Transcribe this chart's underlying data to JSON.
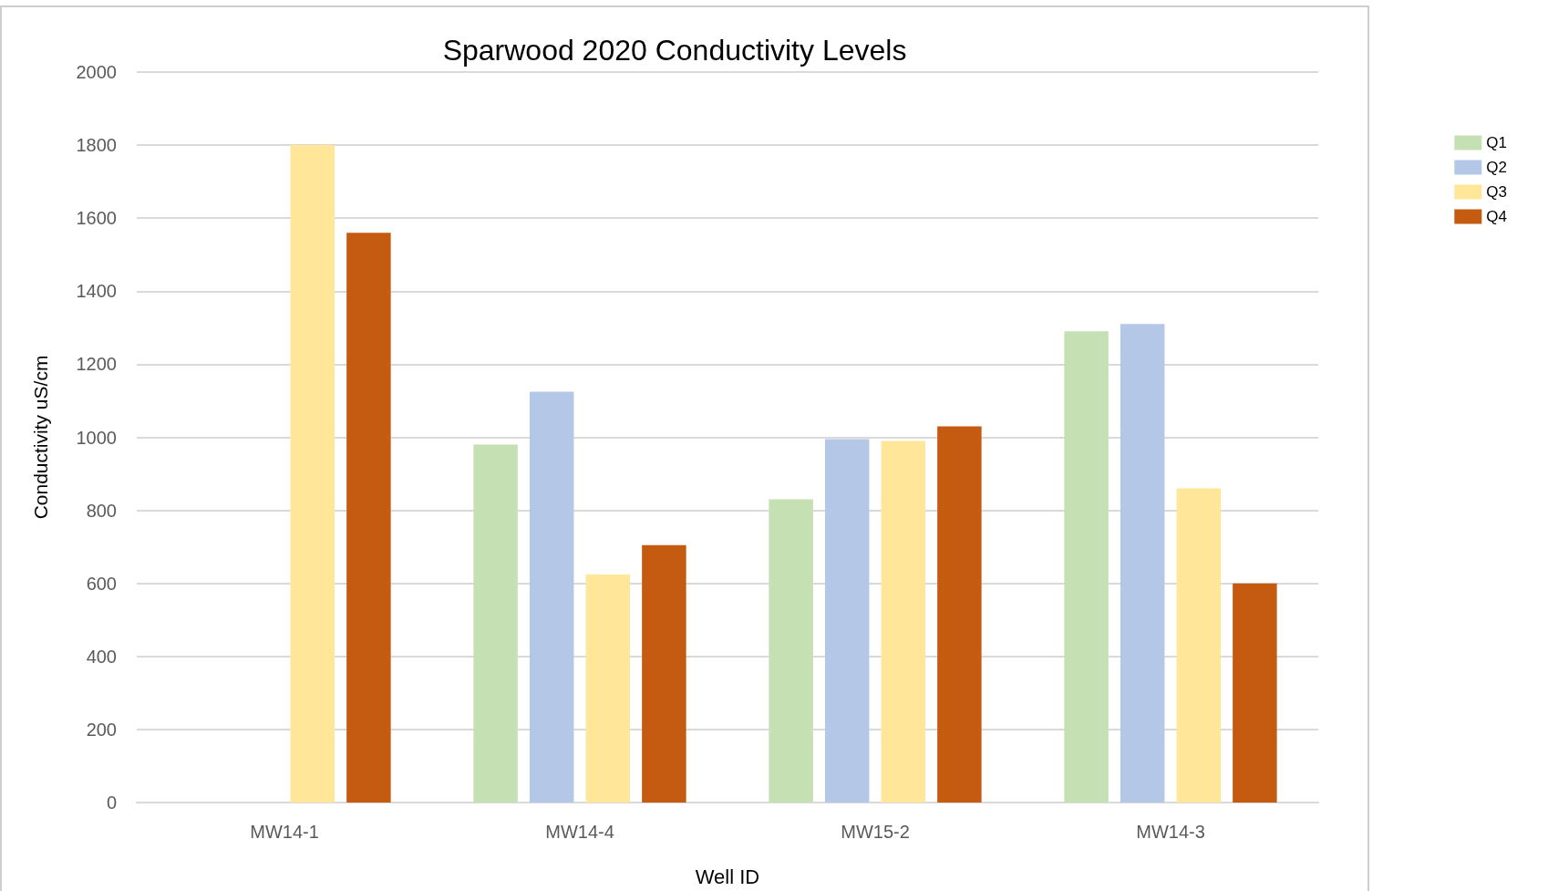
{
  "chart_data": {
    "type": "bar",
    "title": "Sparwood 2020 Conductivity Levels",
    "xlabel": "Well ID",
    "ylabel": "Conductivity uS/cm",
    "categories": [
      "MW14-1",
      "MW14-4",
      "MW15-2",
      "MW14-3"
    ],
    "series": [
      {
        "name": "Q1",
        "color": "#c5e0b3",
        "values": [
          null,
          980,
          830,
          1290
        ]
      },
      {
        "name": "Q2",
        "color": "#b4c7e7",
        "values": [
          null,
          1125,
          995,
          1310
        ]
      },
      {
        "name": "Q3",
        "color": "#ffe699",
        "values": [
          1800,
          625,
          990,
          860
        ]
      },
      {
        "name": "Q4",
        "color": "#c55a11",
        "values": [
          1560,
          705,
          1030,
          600
        ]
      }
    ],
    "ylim": [
      0,
      2000
    ],
    "yticks": [
      0,
      200,
      400,
      600,
      800,
      1000,
      1200,
      1400,
      1600,
      1800,
      2000
    ],
    "grid": "y",
    "legend": "top right"
  }
}
